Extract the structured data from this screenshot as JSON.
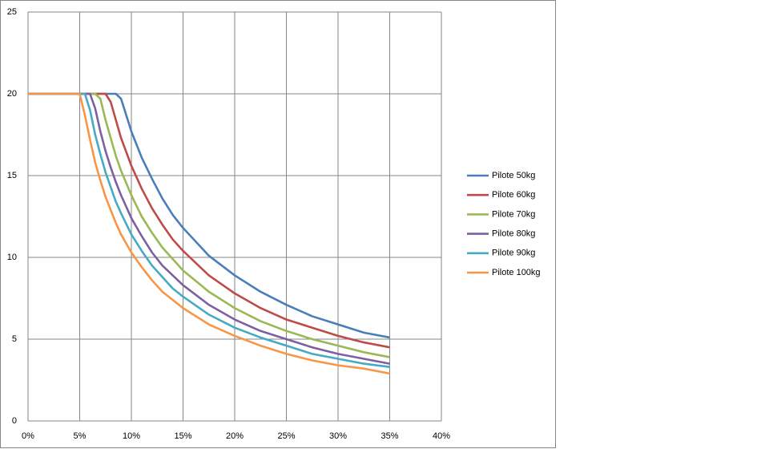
{
  "chart_data": {
    "type": "line",
    "x": [
      0,
      4,
      5,
      5.5,
      6,
      6.5,
      7,
      7.5,
      8,
      8.5,
      9,
      10,
      11,
      12,
      13,
      14,
      15,
      17.5,
      20,
      22.5,
      25,
      27.5,
      30,
      32.5,
      35
    ],
    "series": [
      {
        "name": "Pilote 50kg",
        "color": "#4a7ebb",
        "values": [
          20,
          20,
          20,
          20,
          20,
          20,
          20,
          20,
          20,
          20,
          19.7,
          17.7,
          16.1,
          14.8,
          13.6,
          12.6,
          11.8,
          10.1,
          8.9,
          7.9,
          7.1,
          6.4,
          5.9,
          5.4,
          5.1
        ]
      },
      {
        "name": "Pilote 60kg",
        "color": "#be4b48",
        "values": [
          20,
          20,
          20,
          20,
          20,
          20,
          20,
          20,
          19.5,
          18.4,
          17.3,
          15.6,
          14.2,
          13.0,
          12.0,
          11.1,
          10.4,
          8.9,
          7.8,
          6.9,
          6.2,
          5.7,
          5.2,
          4.8,
          4.5
        ]
      },
      {
        "name": "Pilote 70kg",
        "color": "#98b954",
        "values": [
          20,
          20,
          20,
          20,
          20,
          20,
          19.7,
          18.4,
          17.3,
          16.2,
          15.3,
          13.8,
          12.5,
          11.5,
          10.6,
          9.9,
          9.2,
          7.9,
          6.9,
          6.1,
          5.5,
          5.0,
          4.6,
          4.2,
          3.9
        ]
      },
      {
        "name": "Pilote 80kg",
        "color": "#7d60a0",
        "values": [
          20,
          20,
          20,
          20,
          20,
          19.1,
          17.7,
          16.5,
          15.5,
          14.6,
          13.8,
          12.4,
          11.3,
          10.3,
          9.5,
          8.9,
          8.3,
          7.1,
          6.2,
          5.5,
          5.0,
          4.5,
          4.1,
          3.8,
          3.5
        ]
      },
      {
        "name": "Pilote 90kg",
        "color": "#46aac5",
        "values": [
          20,
          20,
          20,
          20,
          19.0,
          17.5,
          16.3,
          15.2,
          14.3,
          13.4,
          12.7,
          11.4,
          10.4,
          9.5,
          8.8,
          8.1,
          7.6,
          6.5,
          5.7,
          5.1,
          4.6,
          4.1,
          3.8,
          3.5,
          3.3
        ]
      },
      {
        "name": "Pilote 100kg",
        "color": "#f79646",
        "values": [
          20,
          20,
          20,
          18.7,
          17.2,
          15.8,
          14.7,
          13.7,
          12.9,
          12.1,
          11.4,
          10.3,
          9.4,
          8.6,
          7.9,
          7.4,
          6.9,
          5.9,
          5.2,
          4.6,
          4.1,
          3.7,
          3.4,
          3.2,
          2.9
        ]
      }
    ],
    "xlim": [
      0,
      40
    ],
    "xticks": [
      {
        "value": 0,
        "label": "0%"
      },
      {
        "value": 5,
        "label": "5%"
      },
      {
        "value": 10,
        "label": "10%"
      },
      {
        "value": 15,
        "label": "15%"
      },
      {
        "value": 20,
        "label": "20%"
      },
      {
        "value": 25,
        "label": "25%"
      },
      {
        "value": 30,
        "label": "30%"
      },
      {
        "value": 35,
        "label": "35%"
      },
      {
        "value": 40,
        "label": "40%"
      }
    ],
    "ylim": [
      0,
      25
    ],
    "yticks": [
      0,
      5,
      10,
      15,
      20,
      25
    ],
    "grid": true,
    "legend": "right"
  }
}
